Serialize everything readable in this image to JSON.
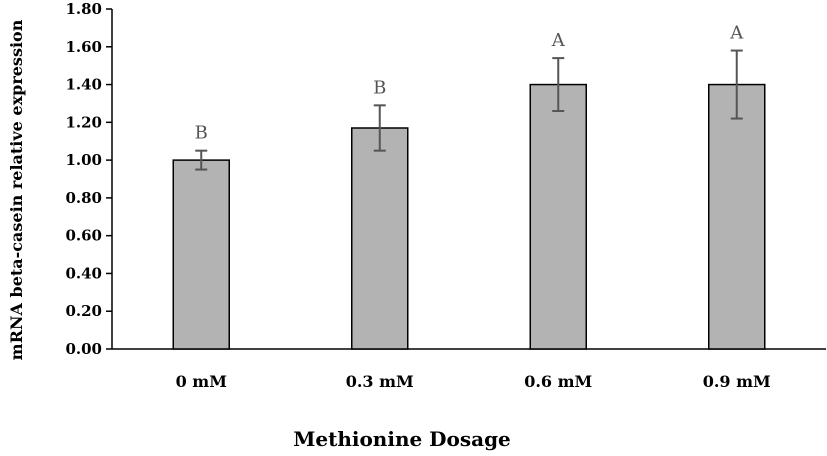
{
  "chart_data": {
    "type": "bar",
    "categories": [
      "0 mM",
      "0.3 mM",
      "0.6 mM",
      "0.9 mM"
    ],
    "values": [
      1.0,
      1.17,
      1.4,
      1.4
    ],
    "error": [
      0.05,
      0.12,
      0.14,
      0.18
    ],
    "significance": [
      "B",
      "B",
      "A",
      "A"
    ],
    "xlabel": "Methionine Dosage",
    "ylabel": "mRNA beta-casein relative expression",
    "ylim": [
      0,
      1.8
    ],
    "yticks": [
      "0.00",
      "0.20",
      "0.40",
      "0.60",
      "0.80",
      "1.00",
      "1.20",
      "1.40",
      "1.60",
      "1.80"
    ],
    "grid": false,
    "legend": "none",
    "bar_color": "#b3b3b3",
    "bar_edge_color": "#000000",
    "error_color": "#555555"
  }
}
